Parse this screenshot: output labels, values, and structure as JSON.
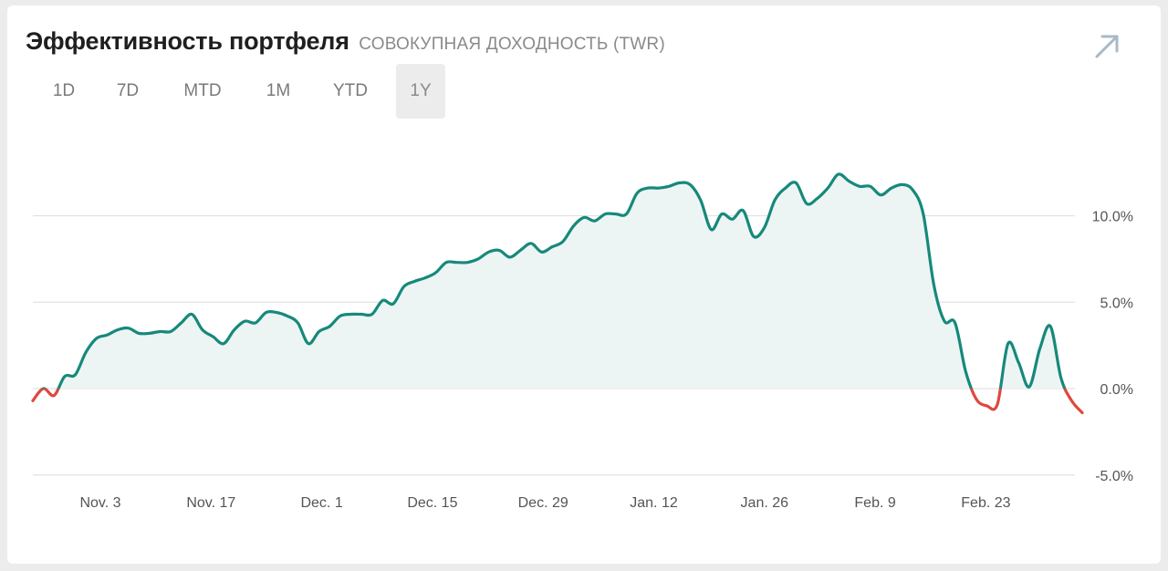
{
  "header": {
    "title": "Эффективность портфеля",
    "subtitle": "СОВОКУПНАЯ ДОХОДНОСТЬ (TWR)"
  },
  "tabs": [
    {
      "label": "1D",
      "active": false
    },
    {
      "label": "7D",
      "active": false
    },
    {
      "label": "MTD",
      "active": false
    },
    {
      "label": "1M",
      "active": false
    },
    {
      "label": "YTD",
      "active": false
    },
    {
      "label": "1Y",
      "active": true
    }
  ],
  "icons": {
    "expand": "arrow-up-right-icon"
  },
  "colors": {
    "positive_line": "#16897b",
    "negative_line": "#e0473f",
    "area_fill": "#edf5f4",
    "grid": "#e2e2e2"
  },
  "chart_data": {
    "type": "line",
    "title": "",
    "xlabel": "",
    "ylabel": "",
    "x_ticks": [
      "Nov. 3",
      "Nov. 17",
      "Dec. 1",
      "Dec. 15",
      "Dec. 29",
      "Jan. 12",
      "Jan. 26",
      "Feb. 9",
      "Feb. 23"
    ],
    "y_ticks": [
      {
        "value": 10,
        "label": "10.0%"
      },
      {
        "value": 5,
        "label": "5.0%"
      },
      {
        "value": 0,
        "label": "0.0%"
      },
      {
        "value": -5,
        "label": "-5.0%"
      }
    ],
    "ylim": [
      -5,
      12.5
    ],
    "grid": "horizontal",
    "series": [
      {
        "values": [
          -0.7,
          0.0,
          -0.4,
          0.7,
          0.8,
          2.1,
          2.9,
          3.1,
          3.4,
          3.5,
          3.2,
          3.2,
          3.3,
          3.3,
          3.8,
          4.3,
          3.4,
          3.0,
          2.6,
          3.4,
          3.9,
          3.8,
          4.4,
          4.4,
          4.2,
          3.8,
          2.6,
          3.3,
          3.6,
          4.2,
          4.3,
          4.3,
          4.3,
          5.1,
          4.9,
          5.9,
          6.2,
          6.4,
          6.7,
          7.3,
          7.3,
          7.3,
          7.5,
          7.9,
          8.0,
          7.6,
          8.0,
          8.4,
          7.9,
          8.2,
          8.5,
          9.4,
          9.9,
          9.7,
          10.1,
          10.1,
          10.1,
          11.3,
          11.6,
          11.6,
          11.7,
          11.9,
          11.8,
          10.9,
          9.2,
          10.1,
          9.8,
          10.3,
          8.8,
          9.3,
          10.9,
          11.6,
          11.9,
          10.7,
          11.0,
          11.6,
          12.4,
          12.0,
          11.7,
          11.7,
          11.2,
          11.6,
          11.8,
          11.5,
          10.1,
          6.0,
          3.9,
          3.8,
          1.0,
          -0.6,
          -1.0,
          -0.9,
          2.6,
          1.5,
          0.1,
          2.3,
          3.6,
          0.6,
          -0.7,
          -1.4
        ]
      }
    ]
  }
}
